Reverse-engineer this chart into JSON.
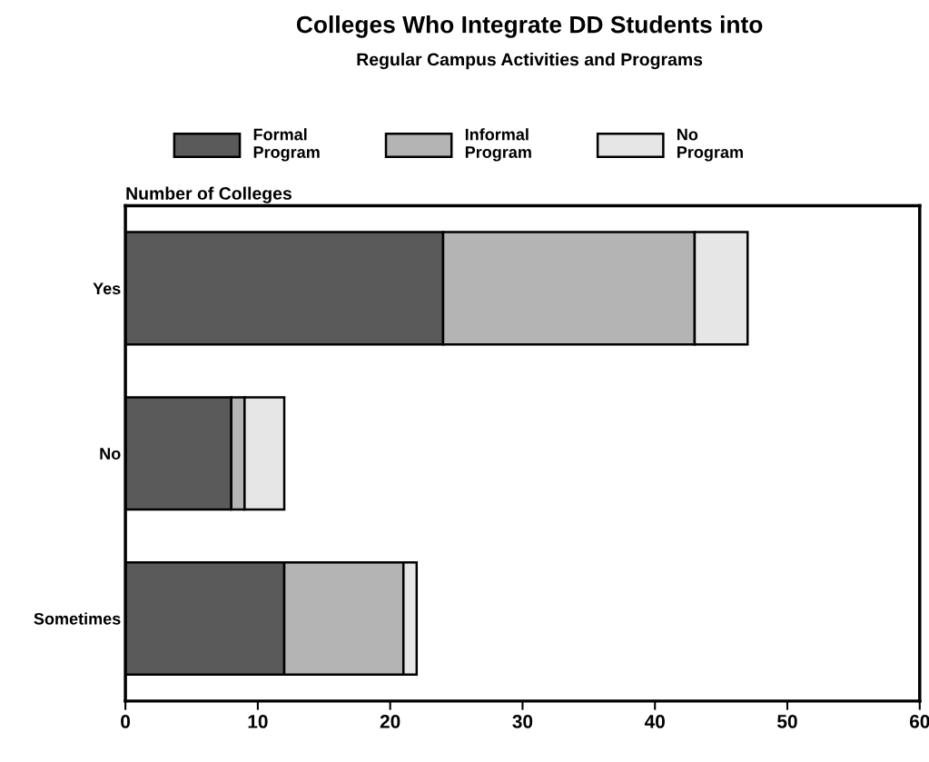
{
  "chart_data": {
    "type": "bar",
    "orientation": "horizontal",
    "stacked": true,
    "title": "Colleges Who Integrate DD Students into",
    "subtitle": "Regular Campus Activities and Programs",
    "xlabel": "Number of Colleges",
    "categories": [
      "Yes",
      "No",
      "Sometimes"
    ],
    "series": [
      {
        "name": "Formal\nProgram",
        "color": "#5a5a5a",
        "values": [
          24,
          8,
          12
        ]
      },
      {
        "name": "Informal\nProgram",
        "color": "#b4b4b4",
        "values": [
          19,
          1,
          9
        ]
      },
      {
        "name": "No\nProgram",
        "color": "#e6e6e6",
        "values": [
          4,
          3,
          1
        ]
      }
    ],
    "xlim": [
      0,
      60
    ],
    "xticks": [
      0,
      10,
      20,
      30,
      40,
      50,
      60
    ],
    "grid": false,
    "legend": "top"
  }
}
